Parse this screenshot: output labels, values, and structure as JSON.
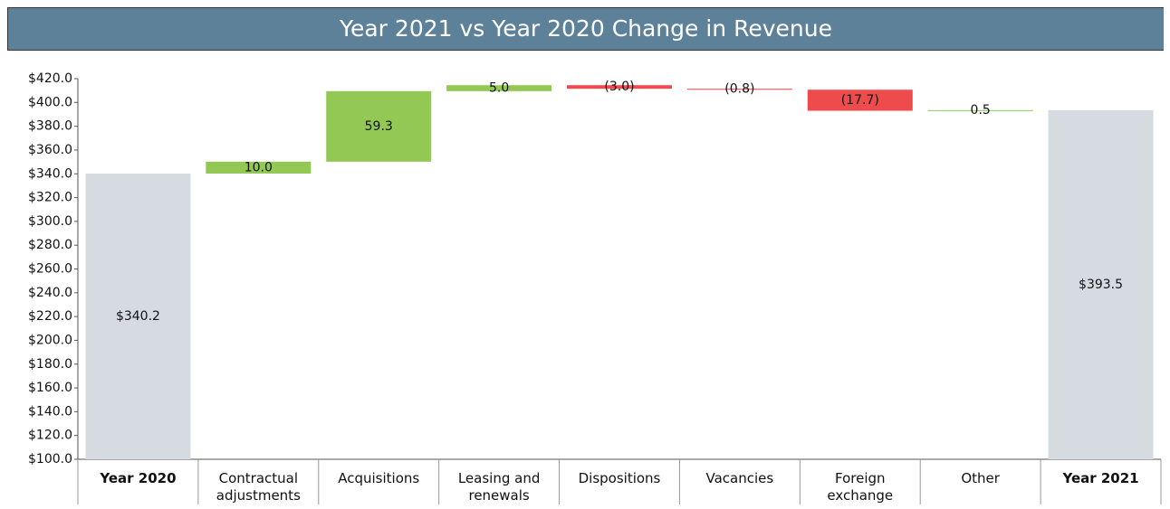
{
  "chart_data": {
    "type": "waterfall",
    "title": "Year 2021 vs Year 2020 Change in Revenue",
    "categories": [
      "Year 2020",
      "Contractual adjustments",
      "Acquisitions",
      "Leasing and renewals",
      "Dispositions",
      "Vacancies",
      "Foreign exchange",
      "Other",
      "Year 2021"
    ],
    "values": [
      340.2,
      10.0,
      59.3,
      5.0,
      -3.0,
      -0.8,
      -17.7,
      0.5,
      393.5
    ],
    "value_labels": [
      "$340.2",
      "10.0",
      "59.3",
      "5.0",
      "(3.0)",
      "(0.8)",
      "(17.7)",
      "0.5",
      "$393.5"
    ],
    "is_total": [
      true,
      false,
      false,
      false,
      false,
      false,
      false,
      false,
      true
    ],
    "colors": {
      "total": "#d6dbe1",
      "increase": "#92c853",
      "decrease": "#ee4b4d"
    },
    "ylim": [
      100,
      420
    ],
    "yticks": [
      {
        "value": 100,
        "label": "$100.0"
      },
      {
        "value": 120,
        "label": "$120.0"
      },
      {
        "value": 140,
        "label": "$140.0"
      },
      {
        "value": 160,
        "label": "$160.0"
      },
      {
        "value": 180,
        "label": "$180.0"
      },
      {
        "value": 200,
        "label": "$200.0"
      },
      {
        "value": 220,
        "label": "$220.0"
      },
      {
        "value": 240,
        "label": "$240.0"
      },
      {
        "value": 260,
        "label": "$260.0"
      },
      {
        "value": 280,
        "label": "$280.0"
      },
      {
        "value": 300,
        "label": "$300.0"
      },
      {
        "value": 320,
        "label": "$320.0"
      },
      {
        "value": 340,
        "label": "$340.0"
      },
      {
        "value": 360,
        "label": "$360.0"
      },
      {
        "value": 380,
        "label": "$380.0"
      },
      {
        "value": 400,
        "label": "$400.0"
      },
      {
        "value": 420,
        "label": "$420.0"
      }
    ],
    "grid": false
  }
}
